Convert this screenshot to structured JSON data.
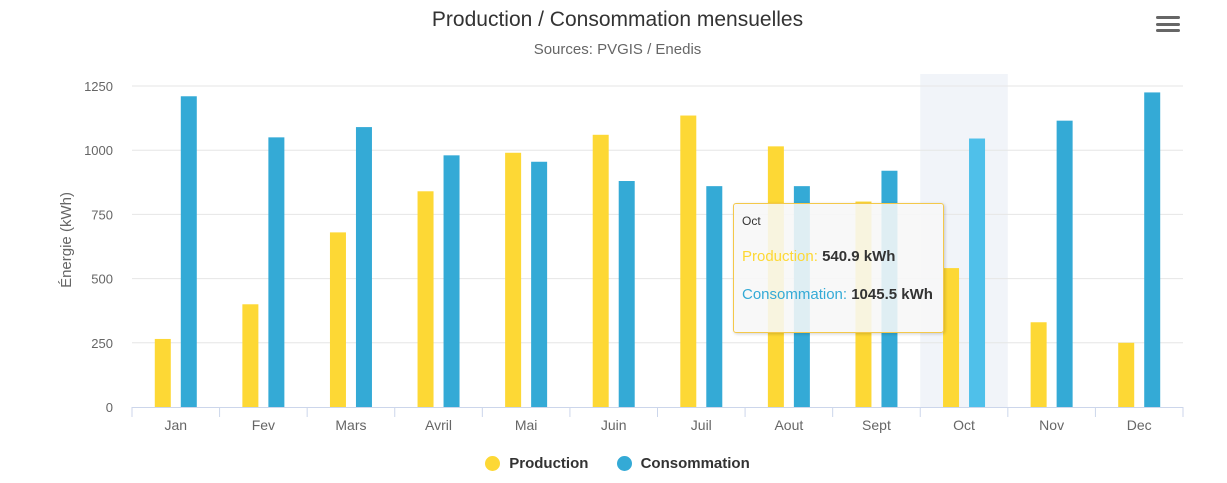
{
  "chart_data": {
    "type": "bar",
    "title": "Production / Consommation mensuelles",
    "subtitle": "Sources: PVGIS / Enedis",
    "ylabel": "Énergie (kWh)",
    "xlabel": "",
    "ylim": [
      0,
      1250
    ],
    "yticks": [
      0,
      250,
      500,
      750,
      1000,
      1250
    ],
    "grid": true,
    "legend_position": "bottom-center",
    "categories": [
      "Jan",
      "Fev",
      "Mars",
      "Avril",
      "Mai",
      "Juin",
      "Juil",
      "Aout",
      "Sept",
      "Oct",
      "Nov",
      "Dec"
    ],
    "series": [
      {
        "name": "Production",
        "color": "#fdd835",
        "values": [
          265,
          400,
          680,
          840,
          990,
          1060,
          1135,
          1015,
          800,
          540.9,
          330,
          250
        ]
      },
      {
        "name": "Consommation",
        "color": "#34aad6",
        "values": [
          1210,
          1050,
          1090,
          980,
          955,
          880,
          860,
          860,
          920,
          1045.5,
          1115,
          1225
        ]
      }
    ],
    "highlighted_category": "Oct"
  },
  "tooltip": {
    "header": "Oct",
    "rows": [
      {
        "label": "Production:",
        "value": "540.9 kWh",
        "color": "#fdd835"
      },
      {
        "label": "Consommation:",
        "value": "1045.5 kWh",
        "color": "#34aad6"
      }
    ]
  },
  "menu": {
    "icon": "hamburger-menu-icon"
  }
}
